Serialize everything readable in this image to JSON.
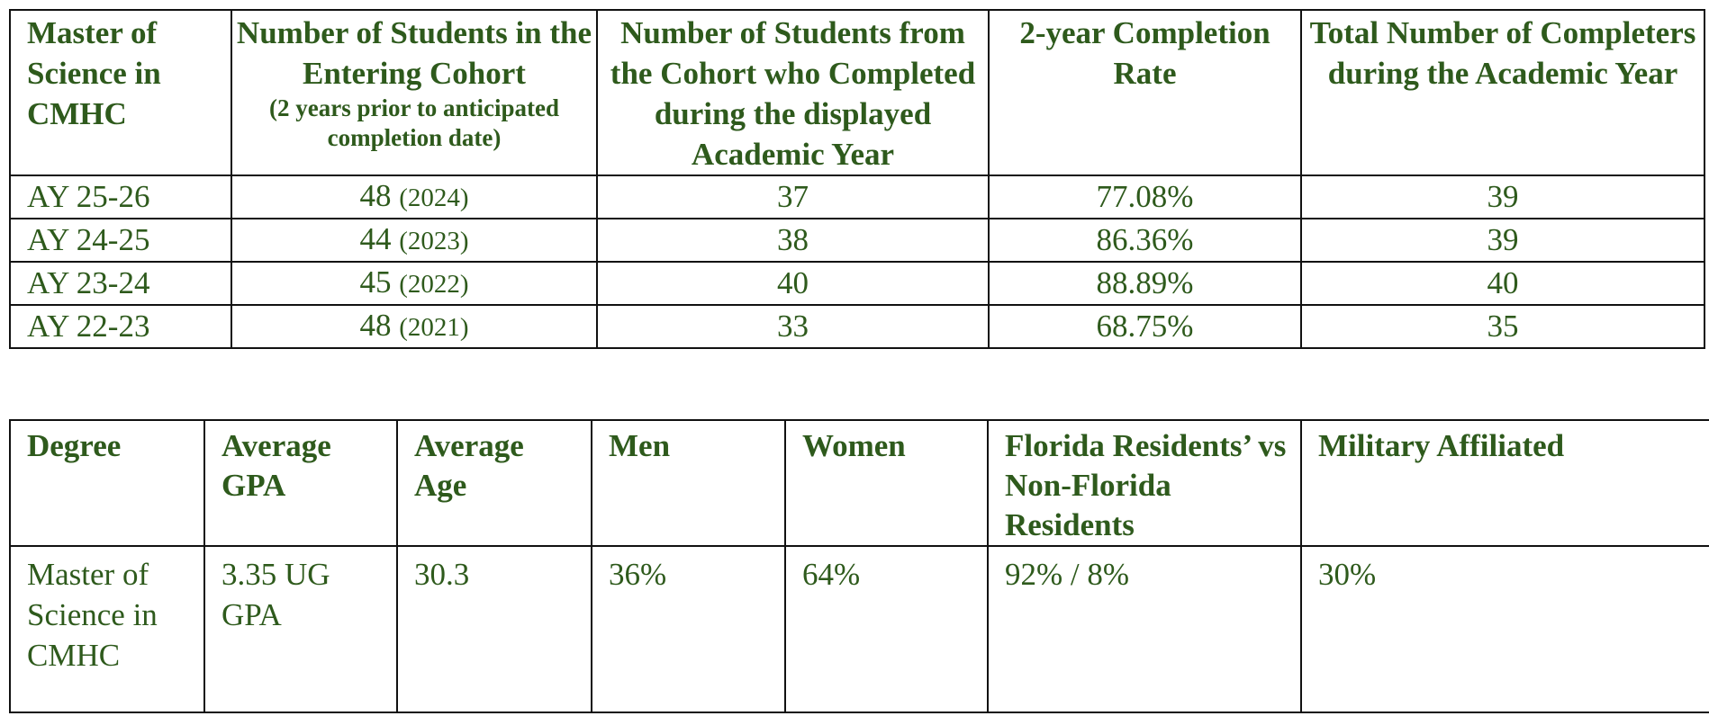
{
  "completion_table": {
    "headers": {
      "col1": "Master of Science in CMHC",
      "col2": "Number of Students in the Entering Cohort",
      "col2_note": "(2 years prior to anticipated completion date)",
      "col3": "Number of Students from the Cohort who Completed during the displayed Academic Year",
      "col4": "2-year Completion Rate",
      "col5": "Total Number of Completers during the Academic Year"
    },
    "rows": [
      {
        "year": "AY 25-26",
        "cohort": "48",
        "cohort_year": "(2024)",
        "completed": "37",
        "rate": "77.08%",
        "total": "39"
      },
      {
        "year": "AY 24-25",
        "cohort": "44",
        "cohort_year": "(2023)",
        "completed": "38",
        "rate": "86.36%",
        "total": "39"
      },
      {
        "year": "AY 23-24",
        "cohort": "45",
        "cohort_year": "(2022)",
        "completed": "40",
        "rate": "88.89%",
        "total": "40"
      },
      {
        "year": "AY 22-23",
        "cohort": "48",
        "cohort_year": "(2021)",
        "completed": "33",
        "rate": "68.75%",
        "total": "35"
      }
    ]
  },
  "demographics_table": {
    "headers": {
      "degree": "Degree",
      "gpa": "Average GPA",
      "age": "Average Age",
      "men": "Men",
      "women": "Women",
      "residents": "Florida Residents’ vs Non-Florida Residents",
      "military": "Military Affiliated"
    },
    "row": {
      "degree": "Master of Science in CMHC",
      "gpa": " 3.35 UG GPA",
      "age": " 30.3",
      "men": " 36%",
      "women": " 64%",
      "residents": " 92% / 8%",
      "military": " 30%"
    }
  },
  "colors": {
    "text": "#2e5a1c",
    "border": "#111111",
    "background": "#ffffff"
  }
}
